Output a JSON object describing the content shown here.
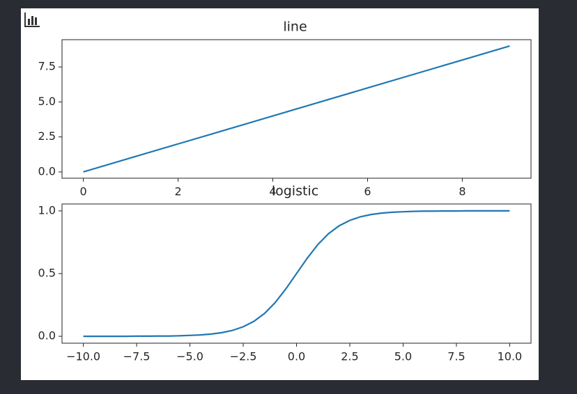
{
  "chart_data": [
    {
      "type": "line",
      "title": "line",
      "x": [
        0,
        1,
        2,
        3,
        4,
        5,
        6,
        7,
        8,
        9
      ],
      "values": [
        0,
        1,
        2,
        3,
        4,
        5,
        6,
        7,
        8,
        9
      ],
      "color": "#1f77b4",
      "xlim": [
        -0.45,
        9.45
      ],
      "ylim": [
        -0.45,
        9.45
      ],
      "xticks": [
        0,
        2,
        4,
        6,
        8
      ],
      "yticks": [
        {
          "value": 0,
          "label": "0.0"
        },
        2.5,
        {
          "value": 5,
          "label": "5.0"
        },
        7.5
      ]
    },
    {
      "type": "line",
      "title": "logistic",
      "x": [
        -10,
        -9.5,
        -9,
        -8.5,
        -8,
        -7.5,
        -7,
        -6.5,
        -6,
        -5.5,
        -5,
        -4.5,
        -4,
        -3.5,
        -3,
        -2.5,
        -2,
        -1.5,
        -1,
        -0.5,
        0,
        0.5,
        1,
        1.5,
        2,
        2.5,
        3,
        3.5,
        4,
        4.5,
        5,
        5.5,
        6,
        6.5,
        7,
        7.5,
        8,
        8.5,
        9,
        9.5,
        10
      ],
      "values": [
        0,
        0,
        0,
        0,
        0,
        0.001,
        0.001,
        0.002,
        0.002,
        0.004,
        0.007,
        0.011,
        0.018,
        0.029,
        0.047,
        0.076,
        0.119,
        0.182,
        0.269,
        0.378,
        0.5,
        0.622,
        0.731,
        0.818,
        0.881,
        0.924,
        0.953,
        0.971,
        0.982,
        0.989,
        0.993,
        0.996,
        0.998,
        0.998,
        0.999,
        0.999,
        1,
        1,
        1,
        1,
        1
      ],
      "color": "#1f77b4",
      "xlim": [
        -11,
        11
      ],
      "ylim": [
        -0.055,
        1.055
      ],
      "xticks": [
        {
          "value": -10,
          "label": "−10.0"
        },
        {
          "value": -7.5,
          "label": "−7.5"
        },
        {
          "value": -5,
          "label": "−5.0"
        },
        {
          "value": -2.5,
          "label": "−2.5"
        },
        {
          "value": 0,
          "label": "0.0"
        },
        2.5,
        {
          "value": 5,
          "label": "5.0"
        },
        7.5,
        {
          "value": 10,
          "label": "10.0"
        }
      ],
      "yticks": [
        {
          "value": 0,
          "label": "0.0"
        },
        0.5,
        {
          "value": 1,
          "label": "1.0"
        }
      ]
    }
  ]
}
